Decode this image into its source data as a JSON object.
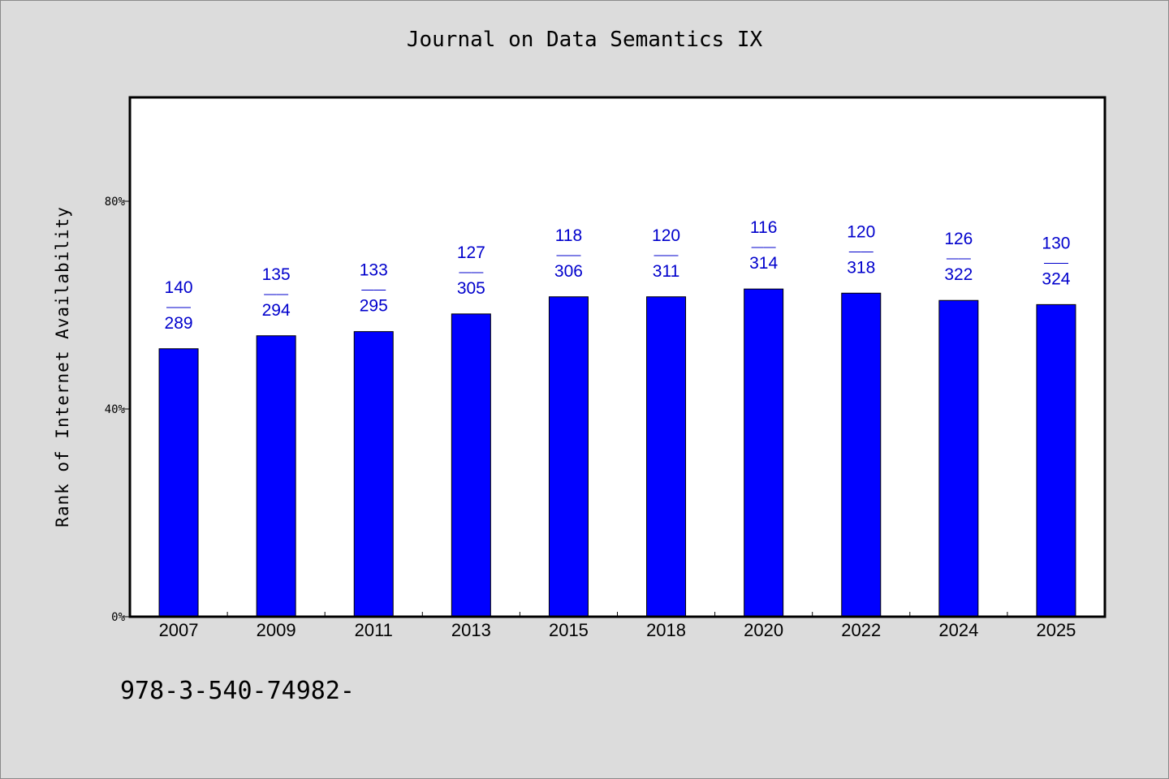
{
  "chart_data": {
    "type": "bar",
    "title": "Journal on Data Semantics IX",
    "xlabel": "",
    "ylabel": "Rank of Internet Availability",
    "ylim": [
      0,
      100
    ],
    "yticks": [
      0,
      40,
      80
    ],
    "ytick_labels": [
      "0%",
      "40%",
      "80%"
    ],
    "categories": [
      "2007",
      "2009",
      "2011",
      "2013",
      "2015",
      "2018",
      "2020",
      "2022",
      "2024",
      "2025"
    ],
    "values": [
      51.6,
      54.1,
      54.9,
      58.3,
      61.6,
      61.6,
      63.1,
      62.3,
      60.9,
      60.1
    ],
    "data_labels": [
      {
        "rank": "140",
        "sep": "——",
        "total": "289"
      },
      {
        "rank": "135",
        "sep": "——",
        "total": "294"
      },
      {
        "rank": "133",
        "sep": "——",
        "total": "295"
      },
      {
        "rank": "127",
        "sep": "——",
        "total": "305"
      },
      {
        "rank": "118",
        "sep": "——",
        "total": "306"
      },
      {
        "rank": "120",
        "sep": "——",
        "total": "311"
      },
      {
        "rank": "116",
        "sep": "——",
        "total": "314"
      },
      {
        "rank": "120",
        "sep": "——",
        "total": "318"
      },
      {
        "rank": "126",
        "sep": "——",
        "total": "322"
      },
      {
        "rank": "130",
        "sep": "——",
        "total": "324"
      }
    ],
    "bar_color": "#0000ff",
    "label_color": "#0000cc",
    "grid": false,
    "legend": "none"
  },
  "footer_text": "978-3-540-74982-"
}
